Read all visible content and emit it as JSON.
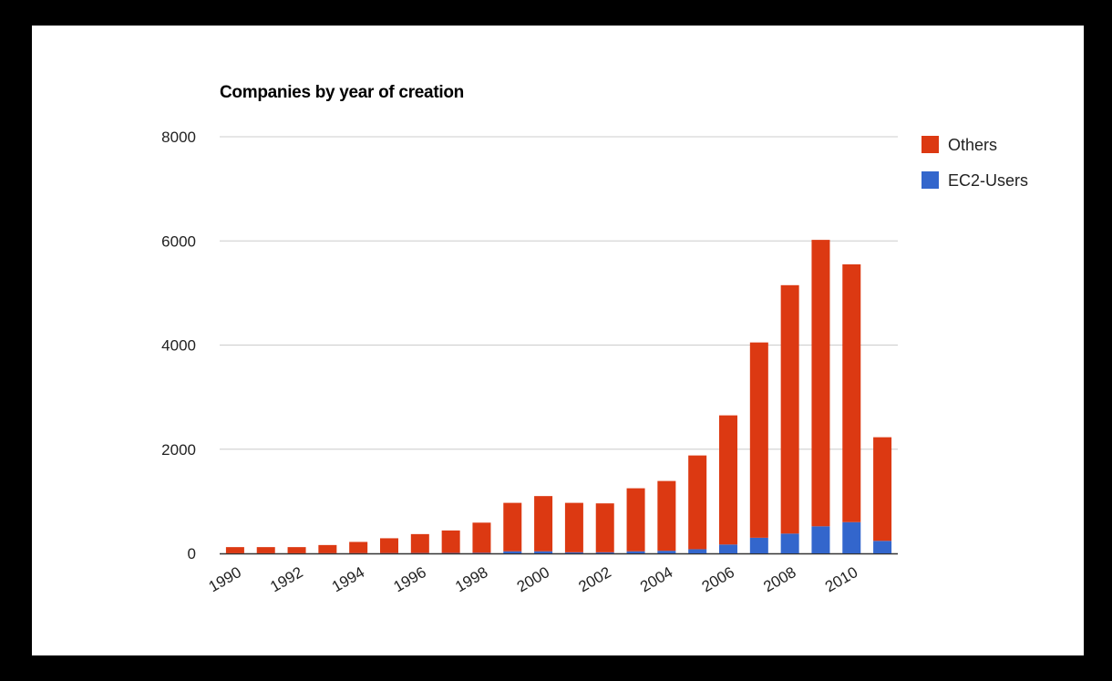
{
  "chart_data": {
    "type": "bar",
    "stacked": true,
    "title": "Companies by year of creation",
    "xlabel": "",
    "ylabel": "",
    "categories": [
      "1990",
      "1991",
      "1992",
      "1993",
      "1994",
      "1995",
      "1996",
      "1997",
      "1998",
      "1999",
      "2000",
      "2001",
      "2002",
      "2003",
      "2004",
      "2005",
      "2006",
      "2007",
      "2008",
      "2009",
      "2010",
      "2011"
    ],
    "x_tick_labels": [
      "1990",
      "1992",
      "1994",
      "1996",
      "1998",
      "2000",
      "2002",
      "2004",
      "2006",
      "2008",
      "2010"
    ],
    "y_tick_labels": [
      "0",
      "2000",
      "4000",
      "6000",
      "8000"
    ],
    "ylim": [
      0,
      8000
    ],
    "grid": true,
    "legend_position": "right",
    "series": [
      {
        "name": "EC2-Users",
        "color": "#3366cc",
        "values": [
          2,
          2,
          2,
          3,
          4,
          5,
          6,
          7,
          10,
          40,
          40,
          20,
          20,
          40,
          50,
          80,
          170,
          300,
          380,
          520,
          600,
          240
        ]
      },
      {
        "name": "Others",
        "color": "#dc3912",
        "values": [
          118,
          118,
          118,
          157,
          216,
          285,
          364,
          433,
          580,
          930,
          1060,
          950,
          940,
          1210,
          1340,
          1800,
          2480,
          3750,
          4770,
          5500,
          4950,
          1990
        ]
      }
    ]
  }
}
